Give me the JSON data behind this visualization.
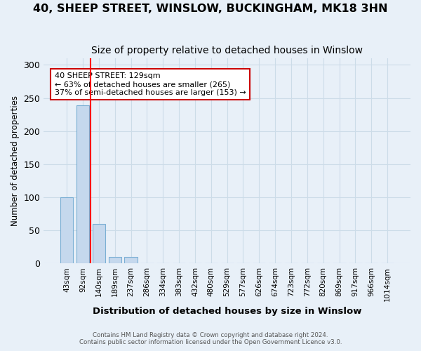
{
  "title": "40, SHEEP STREET, WINSLOW, BUCKINGHAM, MK18 3HN",
  "subtitle": "Size of property relative to detached houses in Winslow",
  "xlabel": "Distribution of detached houses by size in Winslow",
  "ylabel": "Number of detached properties",
  "footer_line1": "Contains HM Land Registry data © Crown copyright and database right 2024.",
  "footer_line2": "Contains public sector information licensed under the Open Government Licence v3.0.",
  "categories": [
    "43sqm",
    "92sqm",
    "140sqm",
    "189sqm",
    "237sqm",
    "286sqm",
    "334sqm",
    "383sqm",
    "432sqm",
    "480sqm",
    "529sqm",
    "577sqm",
    "626sqm",
    "674sqm",
    "723sqm",
    "772sqm",
    "820sqm",
    "869sqm",
    "917sqm",
    "966sqm",
    "1014sqm"
  ],
  "values": [
    100,
    239,
    60,
    10,
    10,
    0,
    0,
    0,
    0,
    0,
    0,
    0,
    0,
    0,
    0,
    0,
    0,
    0,
    0,
    0,
    0
  ],
  "bar_color": "#c5d8ed",
  "bar_edge_color": "#7bafd4",
  "red_line_x": 1.5,
  "ylim": [
    0,
    310
  ],
  "yticks": [
    0,
    50,
    100,
    150,
    200,
    250,
    300
  ],
  "annotation_title": "40 SHEEP STREET: 129sqm",
  "annotation_line2": "← 63% of detached houses are smaller (265)",
  "annotation_line3": "37% of semi-detached houses are larger (153) →",
  "annotation_box_color": "#ffffff",
  "annotation_box_edge": "#cc0000",
  "grid_color": "#ccdce8",
  "bg_color": "#e8f0f8",
  "title_fontsize": 11.5,
  "subtitle_fontsize": 10
}
